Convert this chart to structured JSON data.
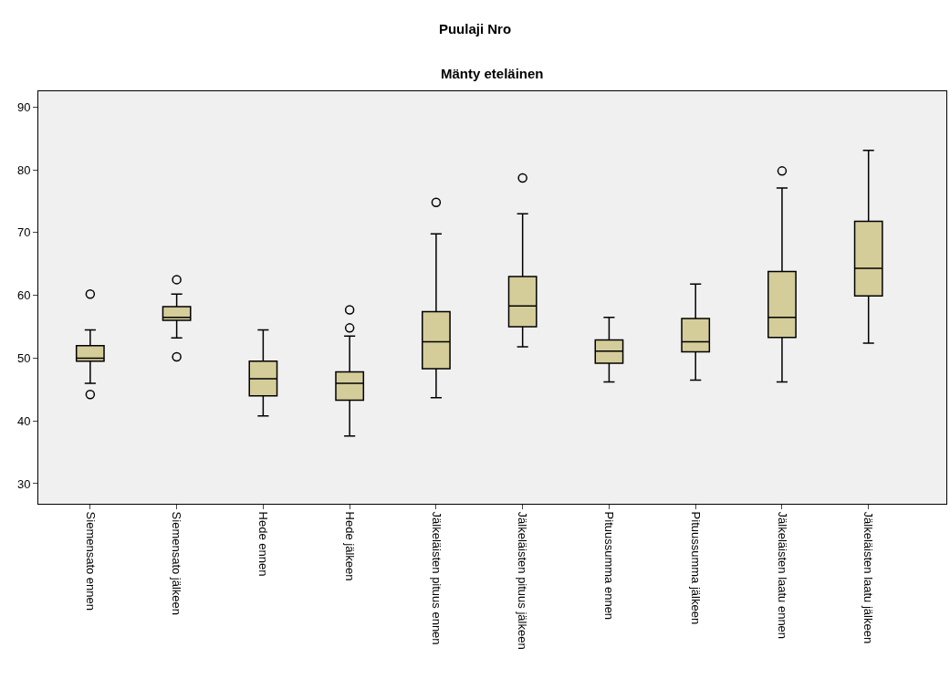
{
  "chart_data": {
    "type": "box",
    "title": "Puulaji Nro",
    "subtitle": "Mänty eteläinen",
    "categories": [
      "Siemensato ennen",
      "Siemensato jälkeen",
      "Hede ennen",
      "Hede jälkeen",
      "Jälkeläisten pituus ennen",
      "Jälkeläisten pituus jälkeen",
      "Pituussumma ennen",
      "Pituussumma jälkeen",
      "Jälkeläisten laatu ennen",
      "Jälkeläisten laatu jälkeen"
    ],
    "color": "#d4cd9a",
    "boxes": [
      {
        "low": 46,
        "q1": 49.5,
        "median": 50,
        "q3": 52,
        "high": 54.5,
        "outliers": [
          44.2,
          60.2
        ]
      },
      {
        "low": 53.2,
        "q1": 56,
        "median": 56.5,
        "q3": 58.2,
        "high": 60.2,
        "outliers": [
          50.2,
          62.5
        ]
      },
      {
        "low": 40.8,
        "q1": 44,
        "median": 46.7,
        "q3": 49.5,
        "high": 54.5
      },
      {
        "low": 37.6,
        "q1": 43.3,
        "median": 46,
        "q3": 47.8,
        "high": 53.5,
        "outliers": [
          54.8,
          57.7
        ]
      },
      {
        "low": 43.7,
        "q1": 48.3,
        "median": 52.6,
        "q3": 57.4,
        "high": 69.8,
        "outliers": [
          74.8
        ]
      },
      {
        "low": 51.8,
        "q1": 55,
        "median": 58.3,
        "q3": 63,
        "high": 73,
        "outliers": [
          78.7
        ]
      },
      {
        "low": 46.2,
        "q1": 49.2,
        "median": 51.1,
        "q3": 52.9,
        "high": 56.5
      },
      {
        "low": 46.5,
        "q1": 51,
        "median": 52.6,
        "q3": 56.3,
        "high": 61.8
      },
      {
        "low": 46.2,
        "q1": 53.3,
        "median": 56.5,
        "q3": 63.8,
        "high": 77.1,
        "outliers": [
          79.8
        ]
      },
      {
        "low": 52.4,
        "q1": 59.9,
        "median": 64.3,
        "q3": 71.8,
        "high": 83.1
      }
    ],
    "ylim": [
      26.8,
      92.5
    ],
    "yticks": [
      30,
      40,
      50,
      60,
      70,
      80,
      90
    ],
    "grid": false
  }
}
